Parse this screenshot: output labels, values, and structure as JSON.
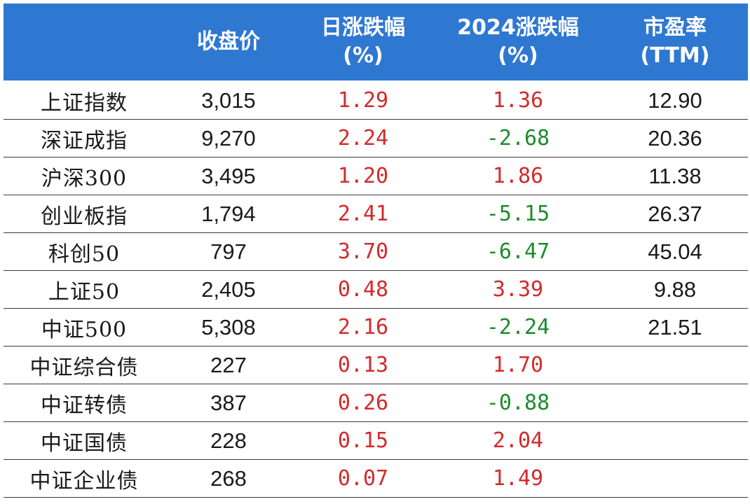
{
  "colors": {
    "header_bg": "#2f78d2",
    "header_text": "#ffffff",
    "positive": "#d42a2a",
    "negative": "#1e8b2c",
    "text": "#1a1a1a"
  },
  "headers": {
    "name": "",
    "close": "收盘价",
    "day_change_line1": "日涨跌幅",
    "day_change_line2": "(%)",
    "ytd_change_line1": "2024涨跌幅",
    "ytd_change_line2": "(%)",
    "pe_line1": "市盈率",
    "pe_line2": "(TTM)"
  },
  "rows": [
    {
      "name": "上证指数",
      "close": "3,015",
      "day": "1.29",
      "ytd": "1.36",
      "pe": "12.90"
    },
    {
      "name": "深证成指",
      "close": "9,270",
      "day": "2.24",
      "ytd": "-2.68",
      "pe": "20.36"
    },
    {
      "name": "沪深300",
      "close": "3,495",
      "day": "1.20",
      "ytd": "1.86",
      "pe": "11.38"
    },
    {
      "name": "创业板指",
      "close": "1,794",
      "day": "2.41",
      "ytd": "-5.15",
      "pe": "26.37"
    },
    {
      "name": "科创50",
      "close": "797",
      "day": "3.70",
      "ytd": "-6.47",
      "pe": "45.04"
    },
    {
      "name": "上证50",
      "close": "2,405",
      "day": "0.48",
      "ytd": "3.39",
      "pe": "9.88"
    },
    {
      "name": "中证500",
      "close": "5,308",
      "day": "2.16",
      "ytd": "-2.24",
      "pe": "21.51"
    },
    {
      "name": "中证综合债",
      "close": "227",
      "day": "0.13",
      "ytd": "1.70",
      "pe": ""
    },
    {
      "name": "中证转债",
      "close": "387",
      "day": "0.26",
      "ytd": "-0.88",
      "pe": ""
    },
    {
      "name": "中证国债",
      "close": "228",
      "day": "0.15",
      "ytd": "2.04",
      "pe": ""
    },
    {
      "name": "中证企业债",
      "close": "268",
      "day": "0.07",
      "ytd": "1.49",
      "pe": ""
    }
  ]
}
